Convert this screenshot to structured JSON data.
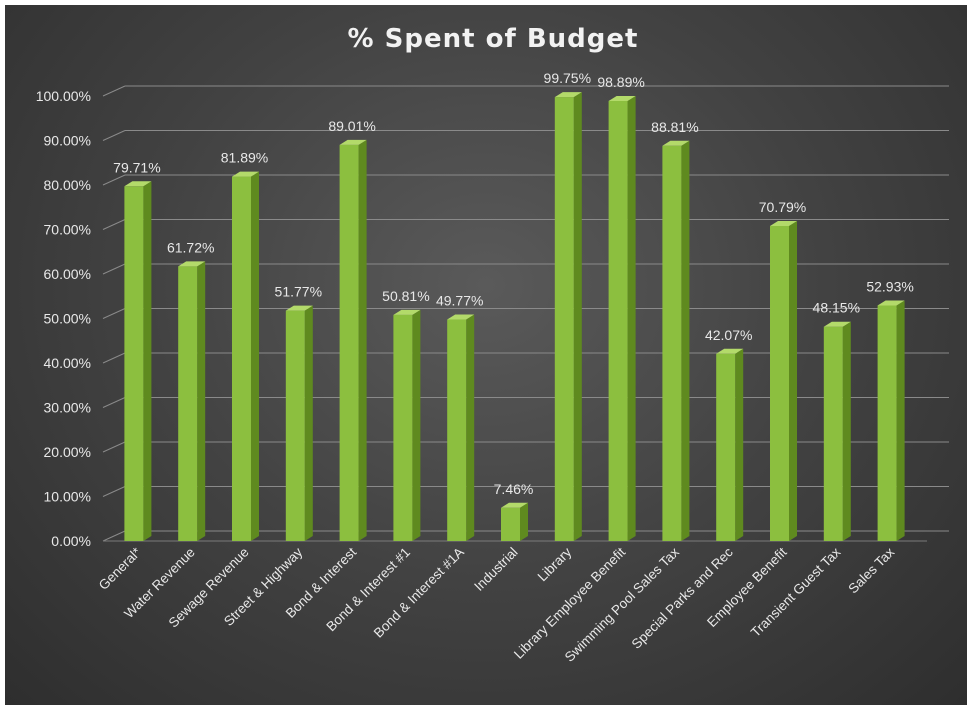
{
  "chart_data": {
    "type": "bar",
    "title": "% Spent of Budget",
    "xlabel": "",
    "ylabel": "",
    "categories": [
      "General*",
      "Water Revenue",
      "Sewage Revenue",
      "Street & Highway",
      "Bond & Interest",
      "Bond & Interest #1",
      "Bond & Interest #1A",
      "Industrial",
      "Library",
      "Library Employee Benefit",
      "Swimming Pool Sales Tax",
      "Special Parks and Rec",
      "Employee Benefit",
      "Transient Guest Tax",
      "Sales Tax"
    ],
    "values": [
      79.71,
      61.72,
      81.89,
      51.77,
      89.01,
      50.81,
      49.77,
      7.46,
      99.75,
      98.89,
      88.81,
      42.07,
      70.79,
      48.15,
      52.93
    ],
    "data_labels": [
      "79.71%",
      "61.72%",
      "81.89%",
      "51.77%",
      "89.01%",
      "50.81%",
      "49.77%",
      "7.46%",
      "99.75%",
      "98.89%",
      "88.81%",
      "42.07%",
      "70.79%",
      "48.15%",
      "52.93%"
    ],
    "y_ticks": [
      "0.00%",
      "10.00%",
      "20.00%",
      "30.00%",
      "40.00%",
      "50.00%",
      "60.00%",
      "70.00%",
      "80.00%",
      "90.00%",
      "100.00%"
    ],
    "ylim": [
      0,
      100
    ],
    "grid": true,
    "legend": "none",
    "colors": {
      "bar_front": "#8cbf3f",
      "bar_side": "#5f8a1f",
      "bar_top": "#b3da6a",
      "background": "#3e3e3e",
      "text": "#e8e8e8"
    }
  }
}
